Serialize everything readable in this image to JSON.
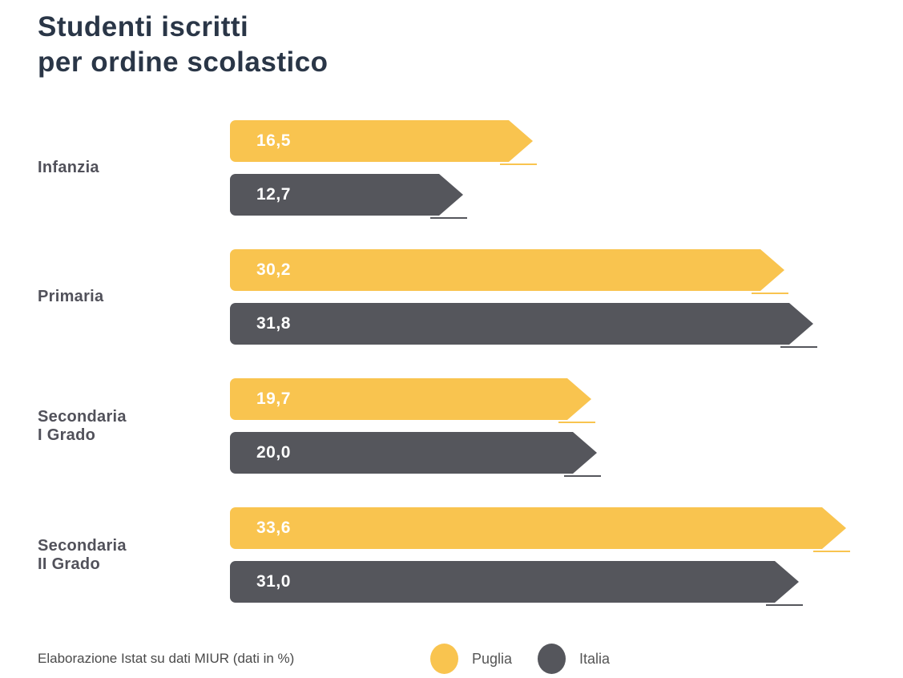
{
  "title": {
    "lines": [
      "Studenti iscritti",
      "per ordine scolastico"
    ],
    "color": "#2A3647"
  },
  "footer": {
    "source_note": "Elaborazione Istat su dati MIUR (dati in %)"
  },
  "legend": {
    "items": [
      {
        "label": "Puglia",
        "color": "#F9C44F"
      },
      {
        "label": "Italia",
        "color": "#55565C"
      }
    ]
  },
  "chart_data": {
    "type": "bar",
    "orientation": "horizontal",
    "title": "Studenti iscritti per ordine scolastico",
    "unit": "%",
    "value_format": "decimal-comma",
    "categories": [
      "Infanzia",
      "Primaria",
      "Secondaria I Grado",
      "Secondaria II Grado"
    ],
    "category_display_lines": [
      [
        "Infanzia"
      ],
      [
        "Primaria"
      ],
      [
        "Secondaria",
        "I Grado"
      ],
      [
        "Secondaria",
        "II Grado"
      ]
    ],
    "series": [
      {
        "name": "Puglia",
        "color": "#F9C44F",
        "values": [
          16.5,
          30.2,
          19.7,
          33.6
        ],
        "value_labels": [
          "16,5",
          "30,2",
          "19,7",
          "33,6"
        ]
      },
      {
        "name": "Italia",
        "color": "#55565C",
        "values": [
          12.7,
          31.8,
          20.0,
          31.0
        ],
        "value_labels": [
          "12,7",
          "31,8",
          "20,0",
          "31,0"
        ]
      }
    ],
    "x_range": [
      0,
      36.7
    ],
    "grid": false,
    "bar_shape": "arrow",
    "legend_position": "bottom",
    "source": "Elaborazione Istat su dati MIUR (dati in %)"
  }
}
